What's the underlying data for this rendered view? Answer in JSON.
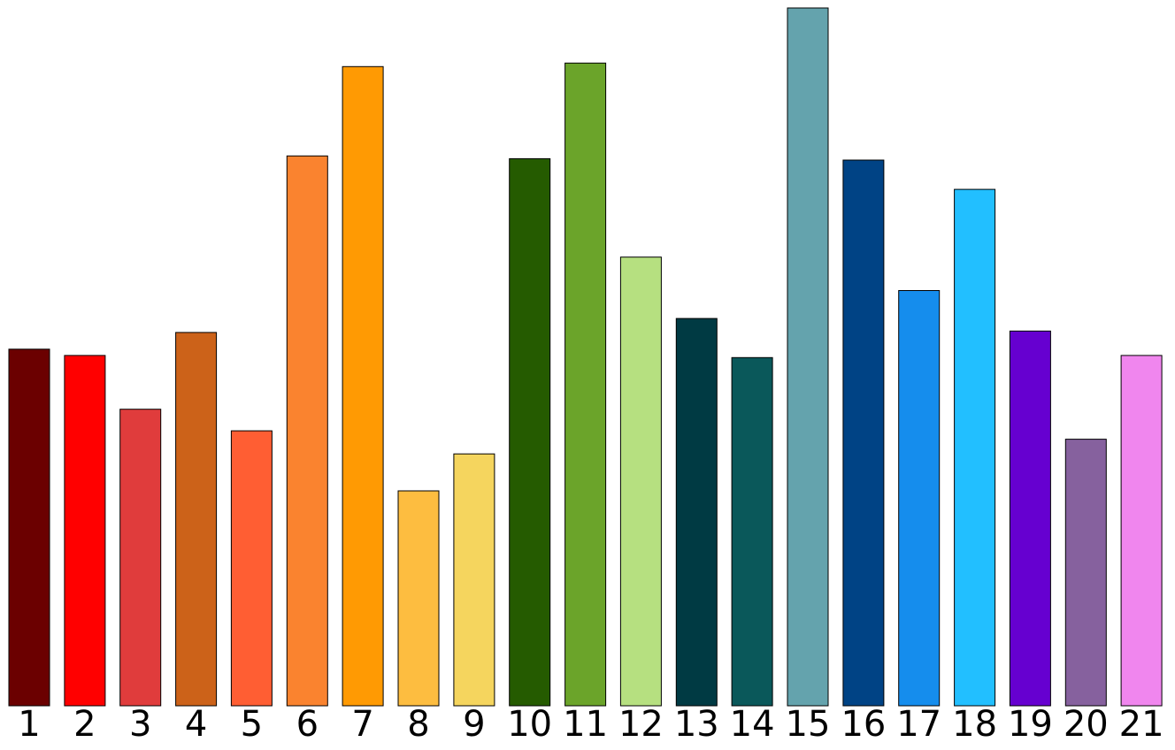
{
  "chart_data": {
    "type": "bar",
    "title": "",
    "xlabel": "",
    "ylabel": "",
    "categories": [
      "1",
      "2",
      "3",
      "4",
      "5",
      "6",
      "7",
      "8",
      "9",
      "10",
      "11",
      "12",
      "13",
      "14",
      "15",
      "16",
      "17",
      "18",
      "19",
      "20",
      "21"
    ],
    "values": [
      51.1,
      50.2,
      42.5,
      53.5,
      39.4,
      78.8,
      91.6,
      30.8,
      36.1,
      78.4,
      92.1,
      64.3,
      55.5,
      49.9,
      100.0,
      78.2,
      59.5,
      74.0,
      53.7,
      38.2,
      50.2
    ],
    "colors": [
      "#6b0000",
      "#ff0000",
      "#e03c3c",
      "#cc6219",
      "#ff5e33",
      "#fa832f",
      "#ff9a03",
      "#fdbd40",
      "#f5d55e",
      "#255b00",
      "#6ba42a",
      "#b6e080",
      "#003a43",
      "#0a585a",
      "#64a3ad",
      "#004385",
      "#158ded",
      "#22bfff",
      "#6600d0",
      "#86619e",
      "#f086ee"
    ],
    "ylim": [
      0,
      100
    ],
    "grid": false,
    "legend": "none"
  }
}
